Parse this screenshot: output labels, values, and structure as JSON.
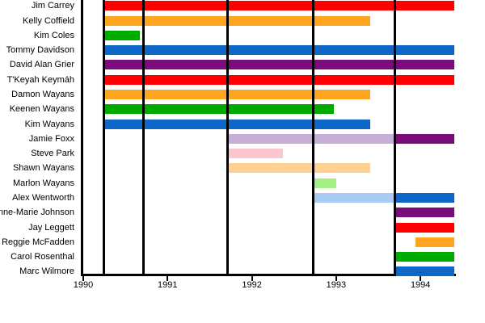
{
  "chart_data": {
    "type": "gantt",
    "description": "Cast member tenure timeline",
    "x_axis": {
      "min": 1990,
      "plot_end": 1994.41,
      "tick_values": [
        1990,
        1991,
        1992,
        1993,
        1994
      ],
      "tick_labels": [
        "1990",
        "1991",
        "1992",
        "1993",
        "1994"
      ]
    },
    "season_boundaries": [
      1990.245,
      1990.71,
      1991.71,
      1992.73,
      1993.7
    ],
    "grid": "vertical-black-lines",
    "legend": "none",
    "axis_color": "#000000",
    "background": "#FFFFFF",
    "palette": {
      "red": "#FF0000",
      "orange": "#FFA41E",
      "green": "#00AB00",
      "blue": "#0E67C6",
      "purple": "#7A0B7A",
      "lavender": "#C6AFD6",
      "pink": "#FAC7D0",
      "peach": "#FFD092",
      "lightgreen": "#A3EF82",
      "lightblue": "#A9CBF4"
    },
    "rows": [
      {
        "label": "Jim Carrey",
        "segments": [
          {
            "start": 1990.26,
            "end": 1994.4,
            "color": "red"
          }
        ]
      },
      {
        "label": "Kelly Coffield",
        "segments": [
          {
            "start": 1990.26,
            "end": 1993.4,
            "color": "orange"
          }
        ]
      },
      {
        "label": "Kim Coles",
        "segments": [
          {
            "start": 1990.26,
            "end": 1990.67,
            "color": "green"
          }
        ]
      },
      {
        "label": "Tommy Davidson",
        "segments": [
          {
            "start": 1990.26,
            "end": 1994.4,
            "color": "blue"
          }
        ]
      },
      {
        "label": "David Alan Grier",
        "segments": [
          {
            "start": 1990.26,
            "end": 1994.4,
            "color": "purple"
          }
        ]
      },
      {
        "label": "T'Keyah Keymáh",
        "segments": [
          {
            "start": 1990.26,
            "end": 1994.4,
            "color": "red"
          }
        ]
      },
      {
        "label": "Damon Wayans",
        "segments": [
          {
            "start": 1990.26,
            "end": 1993.4,
            "color": "orange"
          }
        ]
      },
      {
        "label": "Keenen Wayans",
        "segments": [
          {
            "start": 1990.26,
            "end": 1992.97,
            "color": "green"
          }
        ]
      },
      {
        "label": "Kim Wayans",
        "segments": [
          {
            "start": 1990.26,
            "end": 1993.4,
            "color": "blue"
          }
        ]
      },
      {
        "label": "Jamie Foxx",
        "segments": [
          {
            "start": 1991.71,
            "end": 1993.7,
            "color": "lavender"
          },
          {
            "start": 1993.7,
            "end": 1994.4,
            "color": "purple"
          }
        ]
      },
      {
        "label": "Steve Park",
        "segments": [
          {
            "start": 1991.71,
            "end": 1992.37,
            "color": "pink"
          }
        ]
      },
      {
        "label": "Shawn Wayans",
        "segments": [
          {
            "start": 1991.71,
            "end": 1993.4,
            "color": "peach"
          }
        ]
      },
      {
        "label": "Marlon Wayans",
        "segments": [
          {
            "start": 1992.73,
            "end": 1993.0,
            "color": "lightgreen"
          }
        ]
      },
      {
        "label": "Alex Wentworth",
        "segments": [
          {
            "start": 1992.73,
            "end": 1993.7,
            "color": "lightblue"
          },
          {
            "start": 1993.7,
            "end": 1994.4,
            "color": "blue"
          }
        ]
      },
      {
        "label": "Anne-Marie Johnson",
        "segments": [
          {
            "start": 1993.71,
            "end": 1994.4,
            "color": "purple"
          }
        ]
      },
      {
        "label": "Jay Leggett",
        "segments": [
          {
            "start": 1993.71,
            "end": 1994.4,
            "color": "red"
          }
        ]
      },
      {
        "label": "Reggie McFadden",
        "segments": [
          {
            "start": 1993.94,
            "end": 1994.4,
            "color": "orange"
          }
        ]
      },
      {
        "label": "Carol Rosenthal",
        "segments": [
          {
            "start": 1993.71,
            "end": 1994.4,
            "color": "green"
          }
        ]
      },
      {
        "label": "Marc Wilmore",
        "segments": [
          {
            "start": 1993.71,
            "end": 1994.4,
            "color": "blue"
          }
        ]
      }
    ]
  }
}
